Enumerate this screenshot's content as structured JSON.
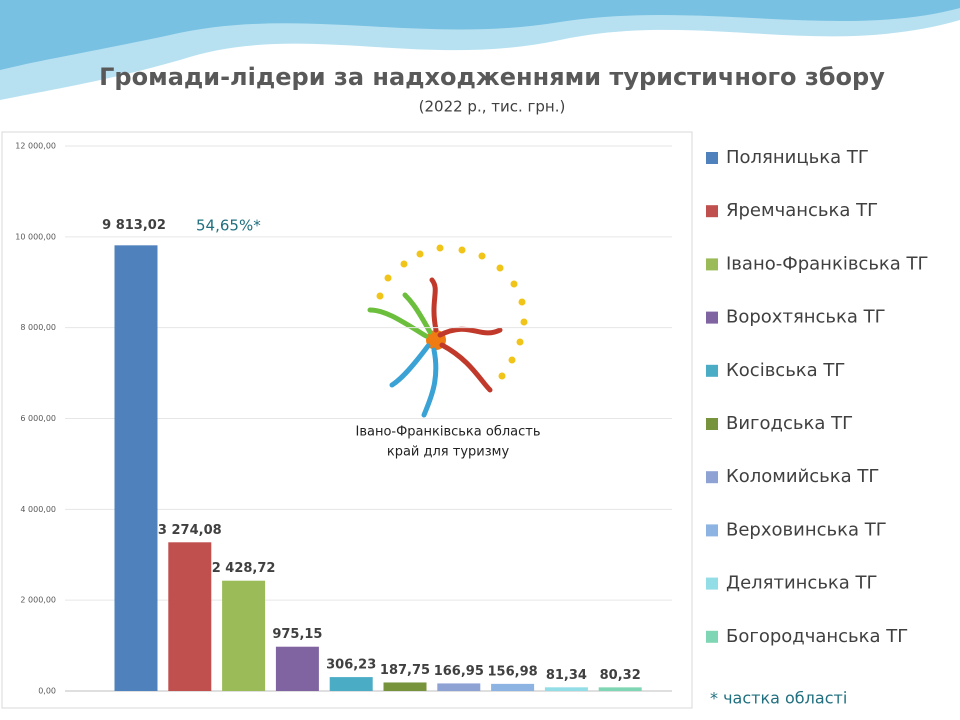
{
  "chart_data": {
    "type": "bar",
    "title": "Громади-лідери за надходженнями туристичного збору",
    "subtitle": "(2022 р., тис. грн.)",
    "ylim": [
      0,
      12000
    ],
    "yticks": [
      {
        "value": 0,
        "label": "0,00"
      },
      {
        "value": 2000,
        "label": "2 000,00"
      },
      {
        "value": 4000,
        "label": "4 000,00"
      },
      {
        "value": 6000,
        "label": "6 000,00"
      },
      {
        "value": 8000,
        "label": "8 000,00"
      },
      {
        "value": 10000,
        "label": "10 000,00"
      },
      {
        "value": 12000,
        "label": "12 000,00"
      }
    ],
    "grid": true,
    "legend": "right",
    "series": [
      {
        "name": "Поляницька ТГ",
        "color": "#4f81bd",
        "values": [
          9813.02
        ],
        "value_labels": [
          "9 813,02"
        ]
      },
      {
        "name": "Яремчанська ТГ",
        "color": "#c0504d",
        "values": [
          3274.08
        ],
        "value_labels": [
          "3 274,08"
        ]
      },
      {
        "name": "Івано-Франківська ТГ",
        "color": "#9bbb59",
        "values": [
          2428.72
        ],
        "value_labels": [
          "2 428,72"
        ]
      },
      {
        "name": "Ворохтянська ТГ",
        "color": "#8064a2",
        "values": [
          975.15
        ],
        "value_labels": [
          "975,15"
        ]
      },
      {
        "name": "Косівська ТГ",
        "color": "#4bacc6",
        "values": [
          306.23
        ],
        "value_labels": [
          "306,23"
        ]
      },
      {
        "name": "Вигодська ТГ",
        "color": "#77933c",
        "values": [
          187.75
        ],
        "value_labels": [
          "187,75"
        ]
      },
      {
        "name": "Коломийська ТГ",
        "color": "#8ea2d4",
        "values": [
          166.95
        ],
        "value_labels": [
          "166,95"
        ]
      },
      {
        "name": "Верховинська ТГ",
        "color": "#8db3e2",
        "values": [
          156.98
        ],
        "value_labels": [
          "156,98"
        ]
      },
      {
        "name": "Делятинська ТГ",
        "color": "#92dde6",
        "values": [
          81.34
        ],
        "value_labels": [
          "81,34"
        ]
      },
      {
        "name": "Богородчанська ТГ",
        "color": "#7fd6b4",
        "values": [
          80.32
        ],
        "value_labels": [
          "80,32"
        ]
      }
    ],
    "annotation": "54,65%*",
    "footnote": "* частка області",
    "logo": {
      "line1": "Івано-Франківська область",
      "line2": "край для туризму"
    }
  }
}
